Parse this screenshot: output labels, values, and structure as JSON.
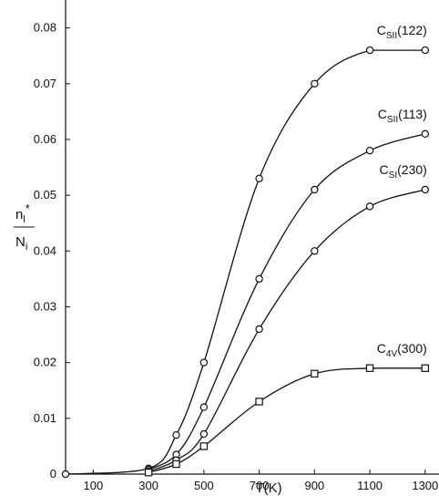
{
  "chart_data": {
    "type": "line",
    "title": "",
    "xlabel": "T(K)",
    "ylabel": {
      "numerator": "n",
      "numerator_sub": "l",
      "numerator_sup": "*",
      "denominator": "N",
      "denominator_sub": "i"
    },
    "xlim": [
      0,
      1350
    ],
    "ylim": [
      0,
      0.085
    ],
    "x_ticks": [
      {
        "value": 100,
        "label": "100"
      },
      {
        "value": 300,
        "label": "300"
      },
      {
        "value": 500,
        "label": "500"
      },
      {
        "value": 700,
        "label": "700"
      },
      {
        "value": 900,
        "label": "900"
      },
      {
        "value": 1100,
        "label": "1100"
      },
      {
        "value": 1300,
        "label": "1300"
      }
    ],
    "y_ticks": [
      {
        "value": 0,
        "label": "0"
      },
      {
        "value": 0.01,
        "label": "0.01"
      },
      {
        "value": 0.02,
        "label": "0.02"
      },
      {
        "value": 0.03,
        "label": "0.03"
      },
      {
        "value": 0.04,
        "label": "0.04"
      },
      {
        "value": 0.05,
        "label": "0.05"
      },
      {
        "value": 0.06,
        "label": "0.06"
      },
      {
        "value": 0.07,
        "label": "0.07"
      },
      {
        "value": 0.08,
        "label": "0.08"
      }
    ],
    "grid": false,
    "series": [
      {
        "name": "CSII(122)",
        "label": {
          "base": "C",
          "sub": "SII",
          "suffix": "(122)"
        },
        "marker": "circle",
        "points": [
          [
            0,
            0
          ],
          [
            300,
            0.001
          ],
          [
            400,
            0.007
          ],
          [
            500,
            0.02
          ],
          [
            700,
            0.053
          ],
          [
            900,
            0.07
          ],
          [
            1100,
            0.076
          ],
          [
            1300,
            0.076
          ]
        ]
      },
      {
        "name": "CSII(113)",
        "label": {
          "base": "C",
          "sub": "SII",
          "suffix": "(113)"
        },
        "marker": "circle",
        "points": [
          [
            300,
            0.0008
          ],
          [
            400,
            0.0035
          ],
          [
            500,
            0.012
          ],
          [
            700,
            0.035
          ],
          [
            900,
            0.051
          ],
          [
            1100,
            0.058
          ],
          [
            1300,
            0.061
          ]
        ]
      },
      {
        "name": "CSI(230)",
        "label": {
          "base": "C",
          "sub": "SI",
          "suffix": "(230)"
        },
        "marker": "circle",
        "points": [
          [
            300,
            0.0005
          ],
          [
            400,
            0.0025
          ],
          [
            500,
            0.0072
          ],
          [
            700,
            0.026
          ],
          [
            900,
            0.04
          ],
          [
            1100,
            0.048
          ],
          [
            1300,
            0.051
          ]
        ]
      },
      {
        "name": "C4V(300)",
        "label": {
          "base": "C",
          "sub": "4V",
          "suffix": "(300)"
        },
        "marker": "square",
        "points": [
          [
            300,
            0.0003
          ],
          [
            400,
            0.0018
          ],
          [
            500,
            0.005
          ],
          [
            700,
            0.013
          ],
          [
            900,
            0.018
          ],
          [
            1100,
            0.019
          ],
          [
            1300,
            0.019
          ]
        ]
      }
    ]
  }
}
